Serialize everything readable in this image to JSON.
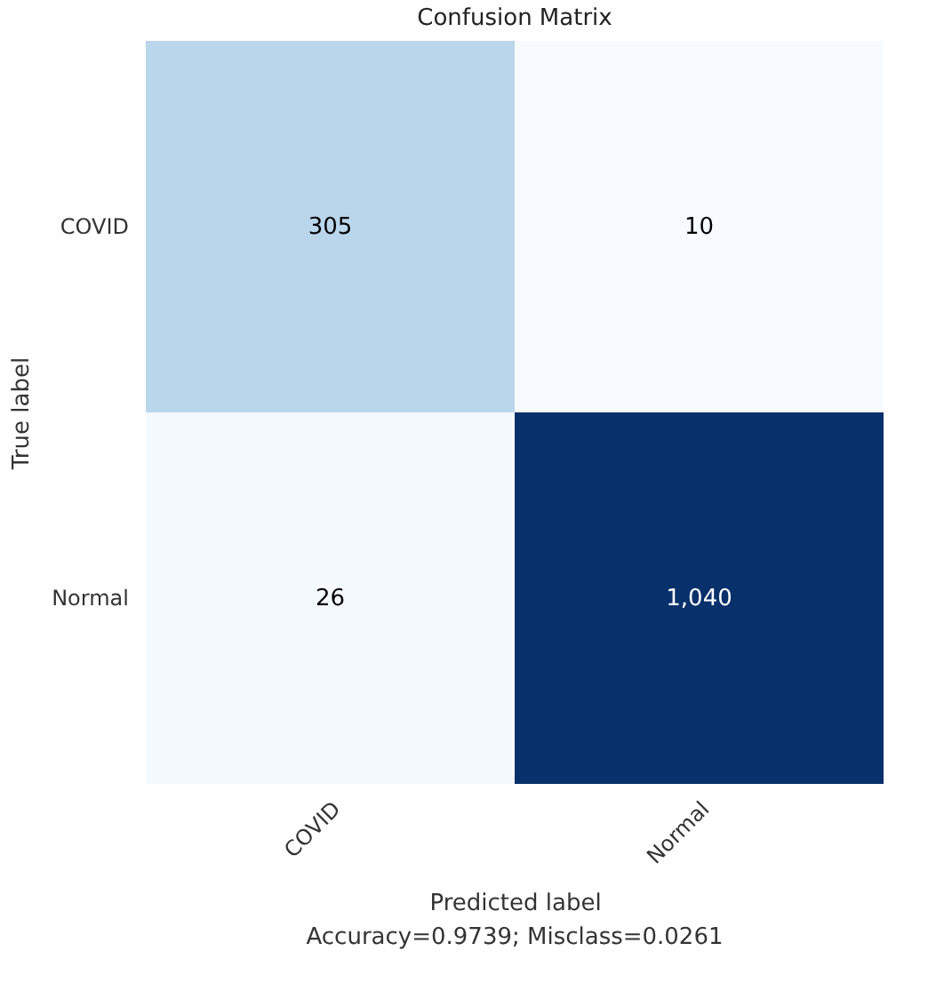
{
  "chart_data": {
    "type": "heatmap",
    "title": "Confusion Matrix",
    "xlabel": "Predicted label",
    "ylabel": "True label",
    "annotations": [
      "Accuracy=0.9739; Misclass=0.0261"
    ],
    "categories": [
      "COVID",
      "Normal"
    ],
    "y_categories": [
      "COVID",
      "Normal"
    ],
    "cells": [
      [
        305,
        10
      ],
      [
        26,
        1040
      ]
    ],
    "cell_labels": [
      [
        "305",
        "10"
      ],
      [
        "26",
        "1,040"
      ]
    ]
  }
}
